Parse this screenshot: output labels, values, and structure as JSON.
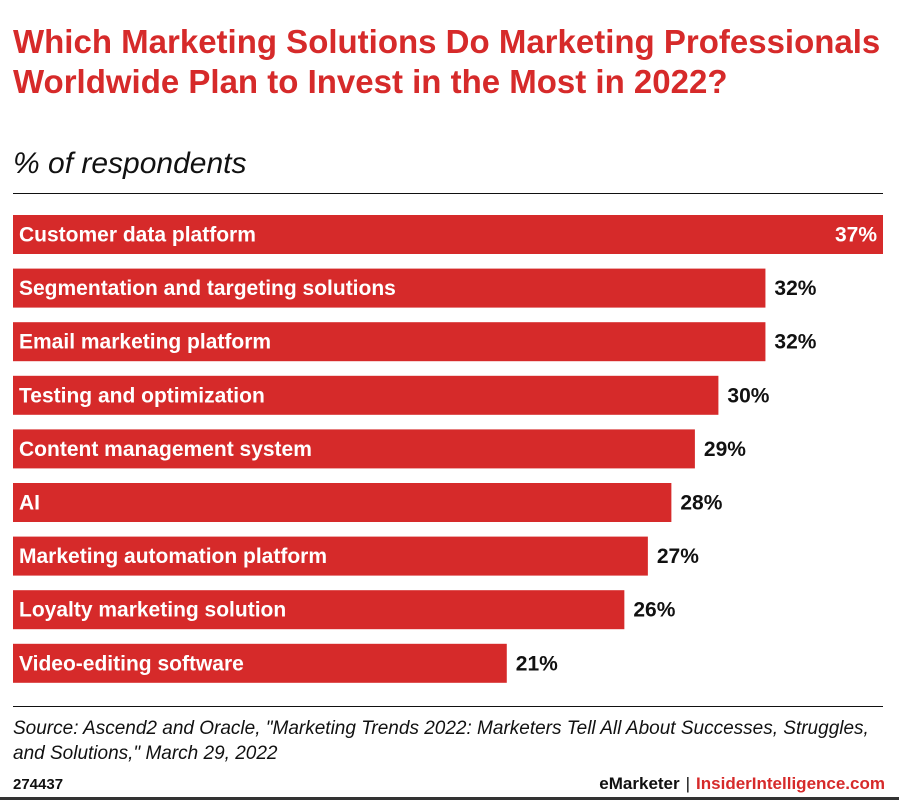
{
  "title": "Which Marketing Solutions Do Marketing Professionals Worldwide Plan to Invest in the Most in 2022?",
  "subtitle": "% of respondents",
  "source": "Source: Ascend2 and Oracle, \"Marketing Trends 2022: Marketers Tell All About Successes, Struggles, and Solutions,\" March 29, 2022",
  "footer": {
    "chart_id": "274437",
    "brand": "eMarketer",
    "separator": "|",
    "brand2": "InsiderIntelligence.com"
  },
  "colors": {
    "bar": "#d62a2a",
    "title": "#d62a2a"
  },
  "chart_data": {
    "type": "bar",
    "orientation": "horizontal",
    "title": "Which Marketing Solutions Do Marketing Professionals Worldwide Plan to Invest in the Most in 2022?",
    "ylabel": "% of respondents",
    "xlim": [
      0,
      37
    ],
    "categories": [
      "Customer data platform",
      "Segmentation and targeting solutions",
      "Email marketing platform",
      "Testing and optimization",
      "Content management system",
      "AI",
      "Marketing automation platform",
      "Loyalty marketing solution",
      "Video-editing software"
    ],
    "values": [
      37,
      32,
      32,
      30,
      29,
      28,
      27,
      26,
      21
    ],
    "value_labels": [
      "37%",
      "32%",
      "32%",
      "30%",
      "29%",
      "28%",
      "27%",
      "26%",
      "21%"
    ]
  }
}
